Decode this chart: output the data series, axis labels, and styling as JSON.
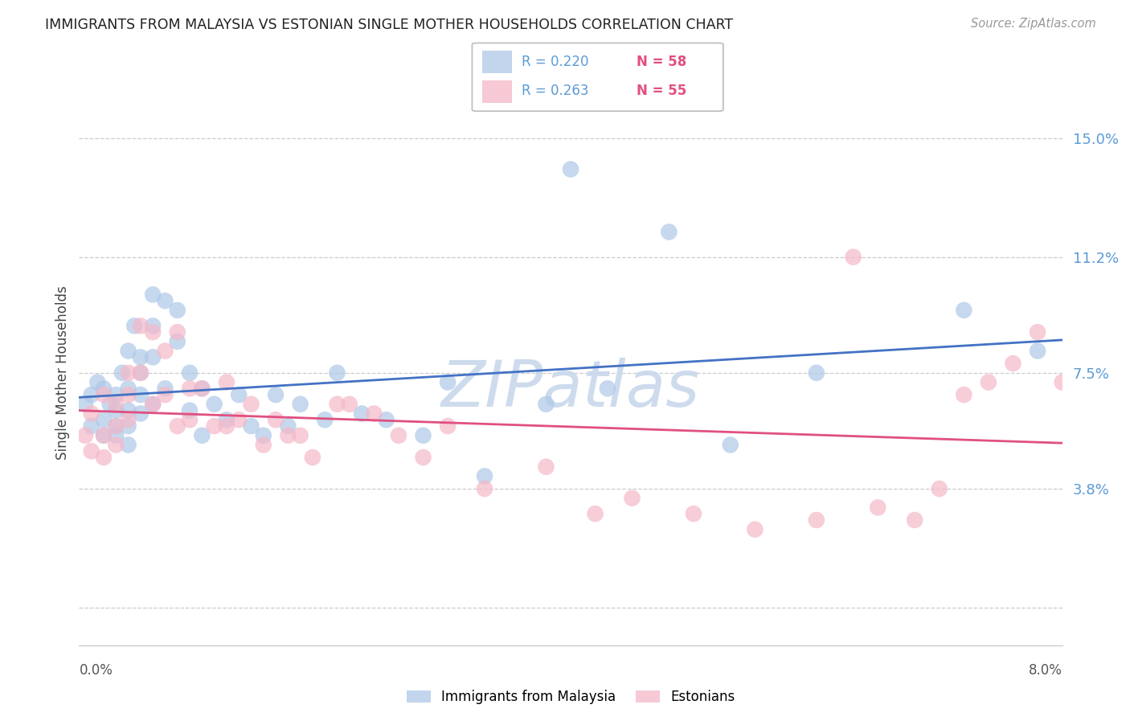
{
  "title": "IMMIGRANTS FROM MALAYSIA VS ESTONIAN SINGLE MOTHER HOUSEHOLDS CORRELATION CHART",
  "source": "Source: ZipAtlas.com",
  "ylabel": "Single Mother Households",
  "yticks": [
    0.0,
    0.038,
    0.075,
    0.112,
    0.15
  ],
  "ytick_labels": [
    "",
    "3.8%",
    "7.5%",
    "11.2%",
    "15.0%"
  ],
  "xlim": [
    0.0,
    0.08
  ],
  "ylim": [
    -0.012,
    0.162
  ],
  "color_blue": "#aec8e8",
  "color_pink": "#f4b8c8",
  "line_blue": "#4472c4",
  "line_pink": "#e05080",
  "watermark_text": "ZIPatlas",
  "watermark_color": "#c8d8ec",
  "blue_x": [
    0.0005,
    0.001,
    0.001,
    0.0015,
    0.002,
    0.002,
    0.002,
    0.0025,
    0.003,
    0.003,
    0.003,
    0.003,
    0.0035,
    0.004,
    0.004,
    0.004,
    0.004,
    0.004,
    0.0045,
    0.005,
    0.005,
    0.005,
    0.005,
    0.006,
    0.006,
    0.006,
    0.006,
    0.007,
    0.007,
    0.008,
    0.008,
    0.009,
    0.009,
    0.01,
    0.01,
    0.011,
    0.012,
    0.013,
    0.014,
    0.015,
    0.016,
    0.017,
    0.018,
    0.02,
    0.021,
    0.023,
    0.025,
    0.028,
    0.03,
    0.033,
    0.038,
    0.04,
    0.043,
    0.048,
    0.053,
    0.06,
    0.072,
    0.078
  ],
  "blue_y": [
    0.065,
    0.068,
    0.058,
    0.072,
    0.06,
    0.07,
    0.055,
    0.065,
    0.068,
    0.063,
    0.055,
    0.058,
    0.075,
    0.082,
    0.07,
    0.063,
    0.058,
    0.052,
    0.09,
    0.08,
    0.075,
    0.068,
    0.062,
    0.1,
    0.09,
    0.08,
    0.065,
    0.098,
    0.07,
    0.095,
    0.085,
    0.075,
    0.063,
    0.07,
    0.055,
    0.065,
    0.06,
    0.068,
    0.058,
    0.055,
    0.068,
    0.058,
    0.065,
    0.06,
    0.075,
    0.062,
    0.06,
    0.055,
    0.072,
    0.042,
    0.065,
    0.14,
    0.07,
    0.12,
    0.052,
    0.075,
    0.095,
    0.082
  ],
  "pink_x": [
    0.0005,
    0.001,
    0.001,
    0.002,
    0.002,
    0.002,
    0.003,
    0.003,
    0.003,
    0.004,
    0.004,
    0.004,
    0.005,
    0.005,
    0.006,
    0.006,
    0.007,
    0.007,
    0.008,
    0.008,
    0.009,
    0.009,
    0.01,
    0.011,
    0.012,
    0.012,
    0.013,
    0.014,
    0.015,
    0.016,
    0.017,
    0.018,
    0.019,
    0.021,
    0.022,
    0.024,
    0.026,
    0.028,
    0.03,
    0.033,
    0.038,
    0.042,
    0.045,
    0.05,
    0.055,
    0.06,
    0.063,
    0.065,
    0.068,
    0.07,
    0.072,
    0.074,
    0.076,
    0.078,
    0.08
  ],
  "pink_y": [
    0.055,
    0.062,
    0.05,
    0.068,
    0.055,
    0.048,
    0.065,
    0.058,
    0.052,
    0.075,
    0.068,
    0.06,
    0.09,
    0.075,
    0.088,
    0.065,
    0.082,
    0.068,
    0.088,
    0.058,
    0.07,
    0.06,
    0.07,
    0.058,
    0.072,
    0.058,
    0.06,
    0.065,
    0.052,
    0.06,
    0.055,
    0.055,
    0.048,
    0.065,
    0.065,
    0.062,
    0.055,
    0.048,
    0.058,
    0.038,
    0.045,
    0.03,
    0.035,
    0.03,
    0.025,
    0.028,
    0.112,
    0.032,
    0.028,
    0.038,
    0.068,
    0.072,
    0.078,
    0.088,
    0.072
  ]
}
